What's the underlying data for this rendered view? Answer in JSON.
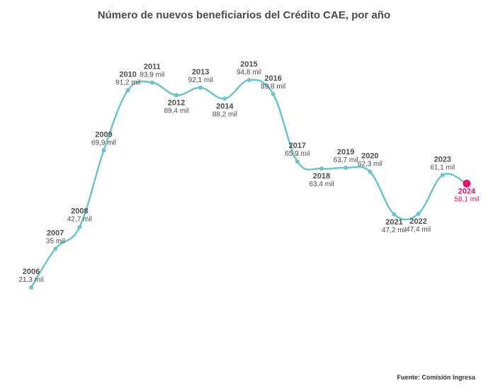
{
  "chart_data": {
    "type": "line",
    "title": "Número de nuevos beneficiarios del Crédito CAE, por año",
    "source": "Fuente: Comisión Ingresa",
    "x": [
      "2006",
      "2007",
      "2008",
      "2009",
      "2010",
      "2011",
      "2012",
      "2013",
      "2014",
      "2015",
      "2016",
      "2017",
      "2018",
      "2019",
      "2020",
      "2021",
      "2022",
      "2023",
      "2024"
    ],
    "values": [
      21.3,
      35,
      42.7,
      69.9,
      91.2,
      93.9,
      89.4,
      92.1,
      88.2,
      94.8,
      89.8,
      65.9,
      63.4,
      63.7,
      62.3,
      47.2,
      47.4,
      61.1,
      58.1
    ],
    "value_labels": [
      "21,3 mil",
      "35 mil",
      "42,7 mil",
      "69,9 mil",
      "91,2 mil",
      "93,9 mil",
      "89,4 mil",
      "92,1 mil",
      "88,2 mil",
      "94,8 mil",
      "89,8 mil",
      "65,9 mil",
      "63,4 mil",
      "63,7 mil",
      "62,3 mil",
      "47,2 mil",
      "47,4 mil",
      "61,1 mil",
      "58,1 mil"
    ],
    "label_side": [
      "above",
      "above",
      "above",
      "above",
      "above",
      "above",
      "below",
      "above",
      "below",
      "above",
      "above",
      "above",
      "below",
      "above",
      "above",
      "below",
      "below",
      "above",
      "below"
    ],
    "highlight": "2024",
    "ylim": [
      0,
      100
    ],
    "xlabel": "",
    "ylabel": "",
    "grid": false,
    "line_color": "#6ec5c9",
    "highlight_color": "#e0126b"
  }
}
